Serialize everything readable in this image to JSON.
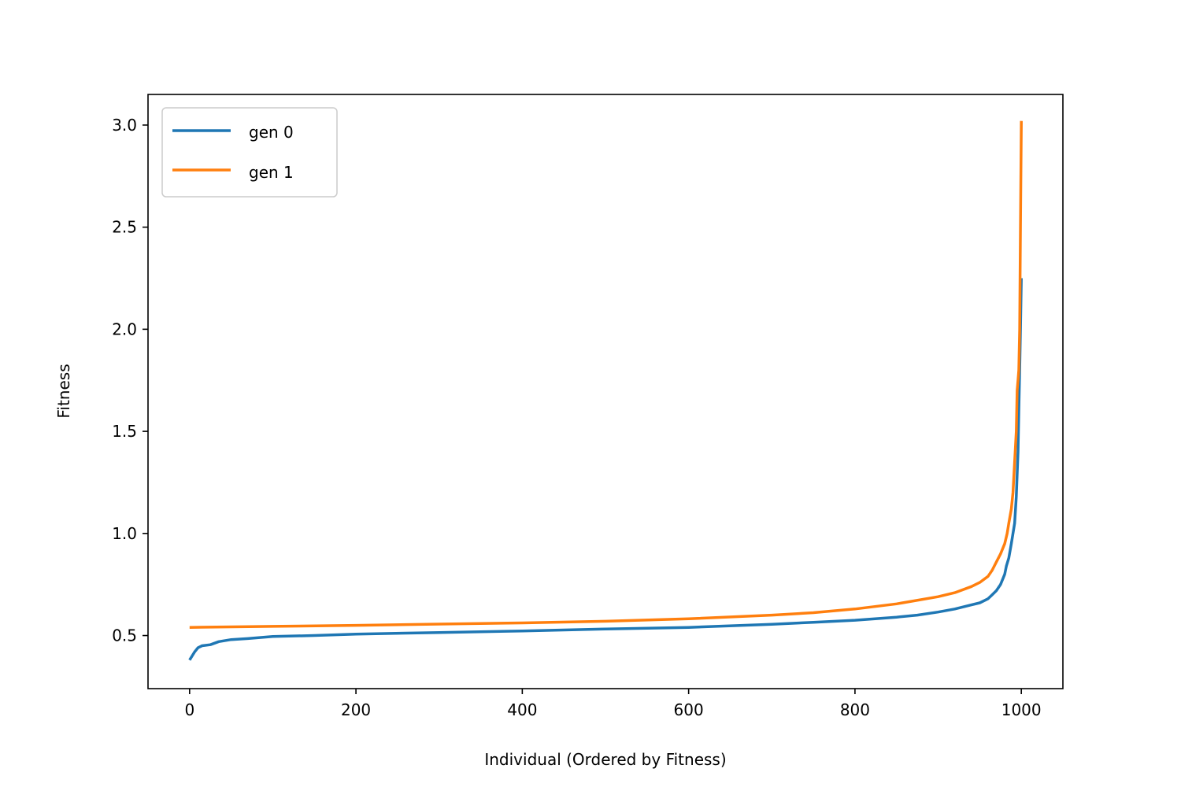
{
  "chart_data": {
    "type": "line",
    "title": "",
    "xlabel": "Individual (Ordered by Fitness)",
    "ylabel": "Fitness",
    "xlim": [
      -50,
      1050
    ],
    "ylim": [
      0.24,
      3.15
    ],
    "x_ticks": [
      0,
      200,
      400,
      600,
      800,
      1000
    ],
    "y_ticks": [
      0.5,
      1.0,
      1.5,
      2.0,
      2.5,
      3.0
    ],
    "x_tick_labels": [
      "0",
      "200",
      "400",
      "600",
      "800",
      "1000"
    ],
    "y_tick_labels": [
      "0.5",
      "1.0",
      "1.5",
      "2.0",
      "2.5",
      "3.0"
    ],
    "grid": false,
    "legend": {
      "position": "upper-left"
    },
    "series": [
      {
        "name": "gen 0",
        "color": "#1f77b4",
        "points": [
          [
            0,
            0.38
          ],
          [
            3,
            0.4
          ],
          [
            6,
            0.42
          ],
          [
            10,
            0.44
          ],
          [
            15,
            0.45
          ],
          [
            25,
            0.455
          ],
          [
            35,
            0.47
          ],
          [
            50,
            0.48
          ],
          [
            70,
            0.485
          ],
          [
            100,
            0.495
          ],
          [
            150,
            0.5
          ],
          [
            200,
            0.507
          ],
          [
            300,
            0.515
          ],
          [
            400,
            0.522
          ],
          [
            500,
            0.532
          ],
          [
            600,
            0.54
          ],
          [
            700,
            0.555
          ],
          [
            750,
            0.565
          ],
          [
            800,
            0.575
          ],
          [
            850,
            0.59
          ],
          [
            875,
            0.6
          ],
          [
            900,
            0.615
          ],
          [
            920,
            0.63
          ],
          [
            940,
            0.65
          ],
          [
            950,
            0.66
          ],
          [
            960,
            0.68
          ],
          [
            965,
            0.7
          ],
          [
            970,
            0.72
          ],
          [
            975,
            0.75
          ],
          [
            980,
            0.8
          ],
          [
            982,
            0.84
          ],
          [
            985,
            0.88
          ],
          [
            988,
            0.95
          ],
          [
            990,
            1.0
          ],
          [
            992,
            1.05
          ],
          [
            994,
            1.18
          ],
          [
            996,
            1.4
          ],
          [
            997,
            1.6
          ],
          [
            998,
            1.8
          ],
          [
            999,
            2.0
          ],
          [
            1000,
            2.25
          ]
        ]
      },
      {
        "name": "gen 1",
        "color": "#ff7f0e",
        "points": [
          [
            0,
            0.54
          ],
          [
            100,
            0.545
          ],
          [
            200,
            0.55
          ],
          [
            300,
            0.556
          ],
          [
            400,
            0.562
          ],
          [
            500,
            0.57
          ],
          [
            600,
            0.582
          ],
          [
            700,
            0.6
          ],
          [
            750,
            0.612
          ],
          [
            800,
            0.63
          ],
          [
            850,
            0.655
          ],
          [
            900,
            0.69
          ],
          [
            920,
            0.71
          ],
          [
            940,
            0.74
          ],
          [
            950,
            0.76
          ],
          [
            960,
            0.79
          ],
          [
            965,
            0.82
          ],
          [
            970,
            0.86
          ],
          [
            975,
            0.9
          ],
          [
            980,
            0.95
          ],
          [
            983,
            1.0
          ],
          [
            985,
            1.05
          ],
          [
            988,
            1.12
          ],
          [
            990,
            1.2
          ],
          [
            992,
            1.35
          ],
          [
            994,
            1.5
          ],
          [
            995,
            1.7
          ],
          [
            996,
            1.75
          ],
          [
            997,
            1.8
          ],
          [
            998,
            2.0
          ],
          [
            999,
            2.5
          ],
          [
            1000,
            3.02
          ]
        ]
      }
    ]
  }
}
